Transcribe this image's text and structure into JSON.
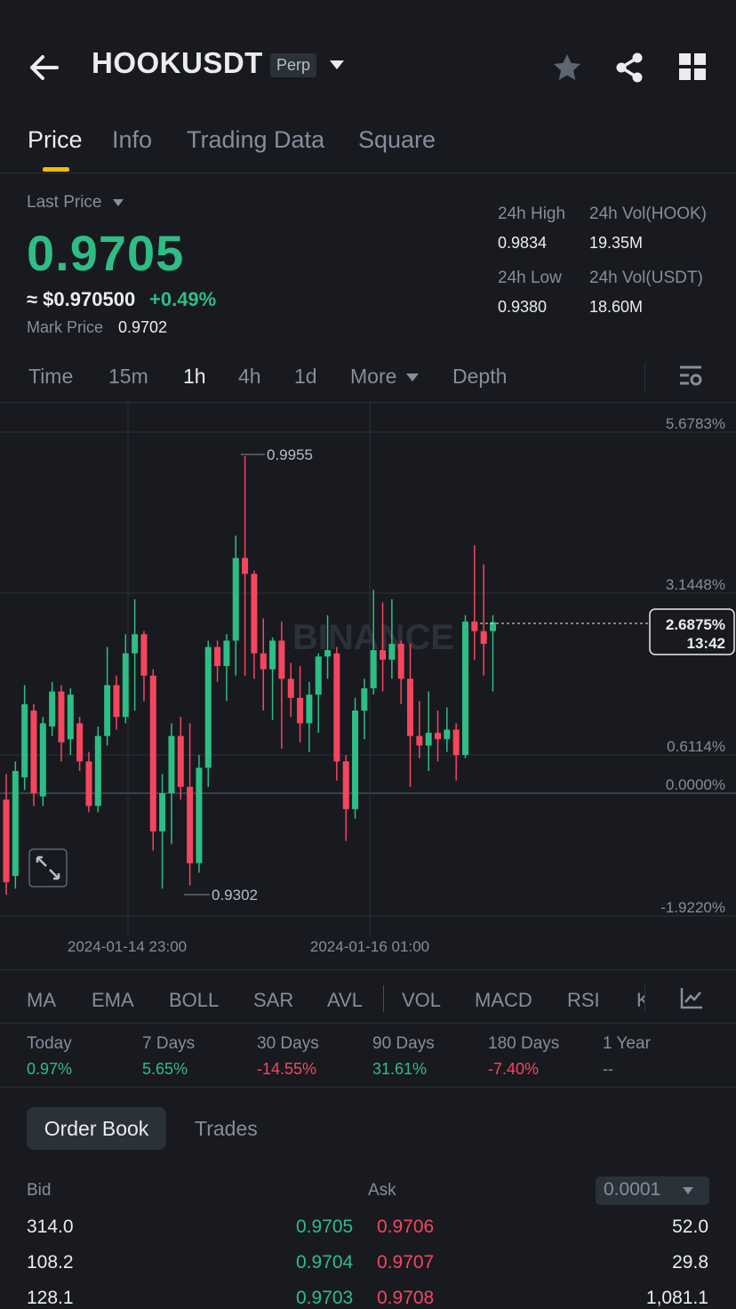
{
  "header": {
    "title": "HOOKUSDT",
    "badge": "Perp"
  },
  "tabs": [
    {
      "label": "Price",
      "active": true
    },
    {
      "label": "Info"
    },
    {
      "label": "Trading Data"
    },
    {
      "label": "Square"
    }
  ],
  "price": {
    "last_label": "Last Price",
    "last": "0.9705",
    "usd": "≈ $0.970500",
    "change": "+0.49%",
    "mark_label": "Mark Price",
    "mark": "0.9702"
  },
  "stats": {
    "high_label": "24h High",
    "high": "0.9834",
    "vol_hook_label": "24h Vol(HOOK)",
    "vol_hook": "19.35M",
    "low_label": "24h Low",
    "low": "0.9380",
    "vol_usdt_label": "24h Vol(USDT)",
    "vol_usdt": "18.60M"
  },
  "intervals": [
    "Time",
    "15m",
    "1h",
    "4h",
    "1d",
    "More",
    "Depth"
  ],
  "active_interval": "1h",
  "chart_data": {
    "type": "candlestick",
    "y_axis_labels": [
      "5.6783%",
      "3.1448%",
      "0.6114%",
      "0.0000%",
      "-1.9220%"
    ],
    "x_axis_labels": [
      "2024-01-14 23:00",
      "2024-01-16 01:00"
    ],
    "max_label": "0.9955",
    "min_label": "0.9302",
    "current_change": "2.6875%",
    "countdown": "13:42",
    "watermark": "BINANCE",
    "colors": {
      "up": "#2ebd85",
      "down": "#f6465d"
    },
    "candles": [
      {
        "o": -0.1,
        "c": -1.4,
        "h": 0.3,
        "l": -1.6
      },
      {
        "o": -1.3,
        "c": 0.35,
        "h": 0.5,
        "l": -1.5
      },
      {
        "o": 0.25,
        "c": 1.4,
        "h": 1.7,
        "l": 0.05
      },
      {
        "o": 1.3,
        "c": 0.0,
        "h": 1.4,
        "l": -0.2
      },
      {
        "o": -0.05,
        "c": 1.1,
        "h": 1.2,
        "l": -0.2
      },
      {
        "o": 1.05,
        "c": 1.6,
        "h": 1.75,
        "l": 0.9
      },
      {
        "o": 1.6,
        "c": 0.8,
        "h": 1.7,
        "l": 0.5
      },
      {
        "o": 0.85,
        "c": 1.55,
        "h": 1.65,
        "l": 0.6
      },
      {
        "o": 1.1,
        "c": 0.5,
        "h": 1.2,
        "l": 0.35
      },
      {
        "o": 0.5,
        "c": -0.2,
        "h": 0.65,
        "l": -0.3
      },
      {
        "o": -0.2,
        "c": 0.9,
        "h": 1.05,
        "l": -0.3
      },
      {
        "o": 0.9,
        "c": 1.7,
        "h": 2.3,
        "l": 0.75
      },
      {
        "o": 1.7,
        "c": 1.2,
        "h": 1.85,
        "l": 1.0
      },
      {
        "o": 1.2,
        "c": 2.2,
        "h": 2.5,
        "l": 1.1
      },
      {
        "o": 2.2,
        "c": 2.5,
        "h": 3.05,
        "l": 1.3
      },
      {
        "o": 2.5,
        "c": 1.85,
        "h": 2.55,
        "l": 1.45
      },
      {
        "o": 1.85,
        "c": -0.6,
        "h": 1.95,
        "l": -0.9
      },
      {
        "o": -0.6,
        "c": 0.0,
        "h": 0.3,
        "l": -1.5
      },
      {
        "o": 0.0,
        "c": 0.9,
        "h": 1.1,
        "l": -0.8
      },
      {
        "o": 0.9,
        "c": 0.1,
        "h": 1.2,
        "l": -0.1
      },
      {
        "o": 0.1,
        "c": -1.1,
        "h": 1.1,
        "l": -1.45
      },
      {
        "o": -1.1,
        "c": 0.4,
        "h": 0.6,
        "l": -1.25
      },
      {
        "o": 0.4,
        "c": 2.3,
        "h": 2.4,
        "l": 0.1
      },
      {
        "o": 2.3,
        "c": 2.0,
        "h": 2.4,
        "l": 1.75
      },
      {
        "o": 2.0,
        "c": 2.4,
        "h": 2.5,
        "l": 1.45
      },
      {
        "o": 2.4,
        "c": 3.7,
        "h": 4.05,
        "l": 1.85
      },
      {
        "o": 3.7,
        "c": 3.45,
        "h": 5.3,
        "l": 1.85
      },
      {
        "o": 3.45,
        "c": 2.2,
        "h": 3.5,
        "l": 1.8
      },
      {
        "o": 2.2,
        "c": 1.95,
        "h": 2.75,
        "l": 1.3
      },
      {
        "o": 1.95,
        "c": 2.4,
        "h": 2.45,
        "l": 1.15
      },
      {
        "o": 2.4,
        "c": 1.8,
        "h": 2.7,
        "l": 0.7
      },
      {
        "o": 1.8,
        "c": 1.5,
        "h": 2.05,
        "l": 1.2
      },
      {
        "o": 1.5,
        "c": 1.1,
        "h": 2.0,
        "l": 0.8
      },
      {
        "o": 1.1,
        "c": 1.55,
        "h": 1.75,
        "l": 0.65
      },
      {
        "o": 1.55,
        "c": 2.15,
        "h": 2.2,
        "l": 0.95
      },
      {
        "o": 2.15,
        "c": 2.25,
        "h": 2.8,
        "l": 1.8
      },
      {
        "o": 2.2,
        "c": 0.5,
        "h": 2.3,
        "l": 0.2
      },
      {
        "o": 0.5,
        "c": -0.25,
        "h": 0.6,
        "l": -0.75
      },
      {
        "o": -0.25,
        "c": 1.3,
        "h": 1.5,
        "l": -0.4
      },
      {
        "o": 1.3,
        "c": 1.65,
        "h": 1.8,
        "l": 0.85
      },
      {
        "o": 1.65,
        "c": 2.25,
        "h": 3.2,
        "l": 1.55
      },
      {
        "o": 2.25,
        "c": 2.1,
        "h": 3.0,
        "l": 1.6
      },
      {
        "o": 2.1,
        "c": 2.35,
        "h": 3.05,
        "l": 1.8
      },
      {
        "o": 2.35,
        "c": 1.8,
        "h": 2.4,
        "l": 1.4
      },
      {
        "o": 1.8,
        "c": 0.9,
        "h": 2.35,
        "l": 0.1
      },
      {
        "o": 0.9,
        "c": 0.75,
        "h": 1.45,
        "l": 0.55
      },
      {
        "o": 0.75,
        "c": 0.95,
        "h": 1.6,
        "l": 0.35
      },
      {
        "o": 0.95,
        "c": 0.85,
        "h": 1.3,
        "l": 0.5
      },
      {
        "o": 0.85,
        "c": 1.0,
        "h": 1.35,
        "l": 0.65
      },
      {
        "o": 1.0,
        "c": 0.6,
        "h": 1.1,
        "l": 0.2
      },
      {
        "o": 0.6,
        "c": 2.7,
        "h": 2.8,
        "l": 0.55
      },
      {
        "o": 2.7,
        "c": 2.55,
        "h": 3.9,
        "l": 2.1
      },
      {
        "o": 2.55,
        "c": 2.35,
        "h": 3.6,
        "l": 1.85
      },
      {
        "o": 2.55,
        "c": 2.69,
        "h": 2.8,
        "l": 1.6
      }
    ]
  },
  "indicators": [
    "MA",
    "EMA",
    "BOLL",
    "SAR",
    "AVL",
    "VOL",
    "MACD",
    "RSI",
    "K"
  ],
  "periods": [
    {
      "label": "Today",
      "value": "0.97%",
      "dir": "up"
    },
    {
      "label": "7 Days",
      "value": "5.65%",
      "dir": "up"
    },
    {
      "label": "30 Days",
      "value": "-14.55%",
      "dir": "down"
    },
    {
      "label": "90 Days",
      "value": "31.61%",
      "dir": "up"
    },
    {
      "label": "180 Days",
      "value": "-7.40%",
      "dir": "down"
    },
    {
      "label": "1 Year",
      "value": "--",
      "dir": "flat"
    }
  ],
  "orderbook": {
    "tab_active": "Order Book",
    "tab_other": "Trades",
    "bid_label": "Bid",
    "ask_label": "Ask",
    "precision": "0.0001",
    "rows": [
      {
        "bid_qty": "314.0",
        "bid": "0.9705",
        "ask": "0.9706",
        "ask_qty": "52.0"
      },
      {
        "bid_qty": "108.2",
        "bid": "0.9704",
        "ask": "0.9707",
        "ask_qty": "29.8"
      },
      {
        "bid_qty": "128.1",
        "bid": "0.9703",
        "ask": "0.9708",
        "ask_qty": "1,081.1"
      }
    ]
  }
}
